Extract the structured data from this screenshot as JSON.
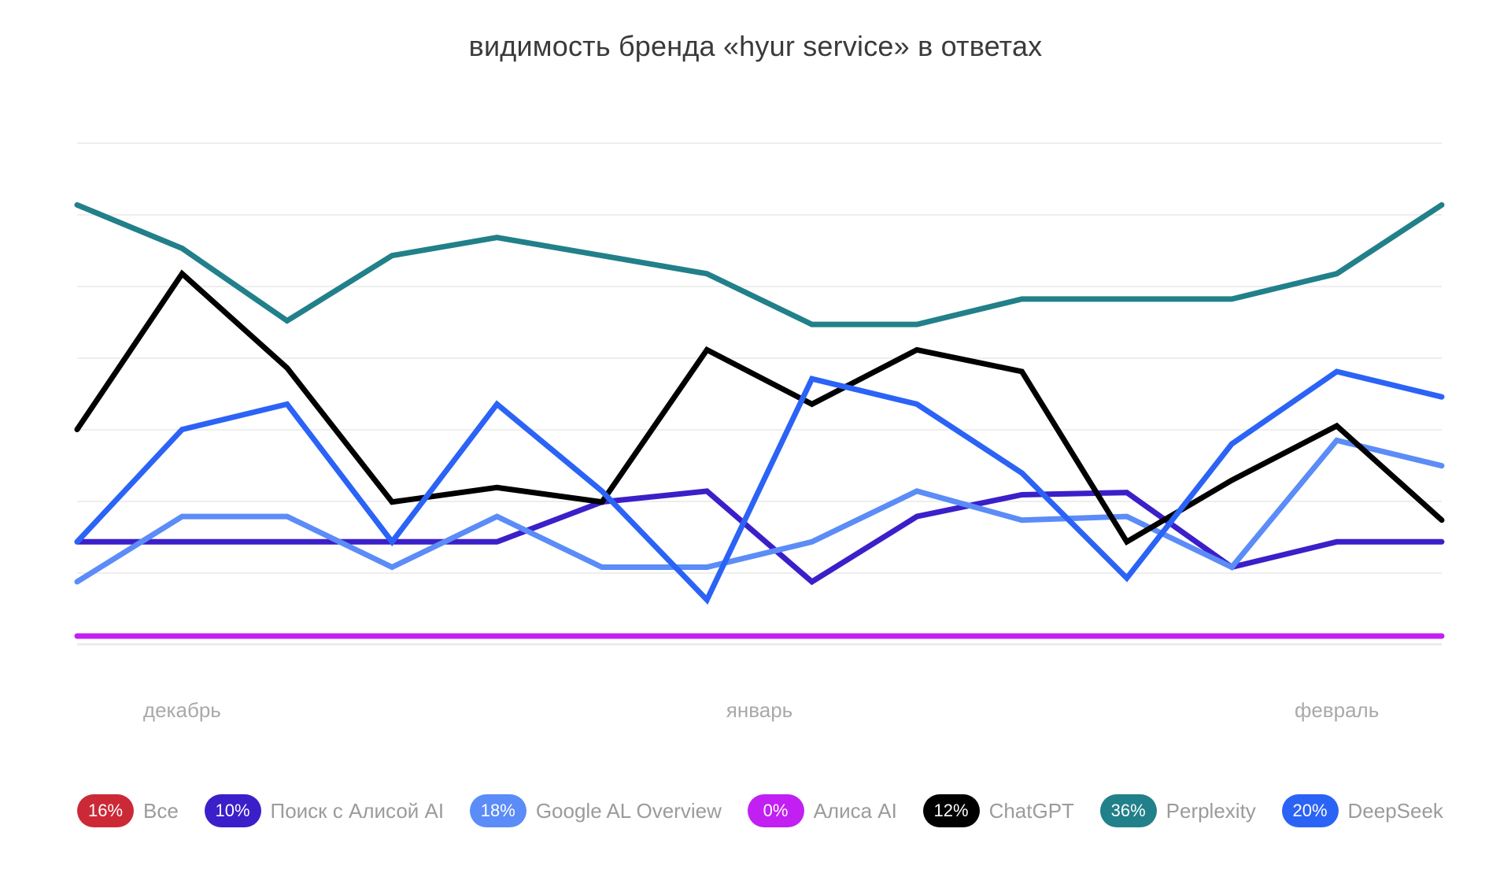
{
  "chart_data": {
    "type": "line",
    "title": "видимость бренда «hyur service» в ответах",
    "xlabel": "",
    "ylabel": "",
    "x_tick_labels": [
      {
        "label": "декабрь",
        "index": 1
      },
      {
        "label": "январь",
        "index": 6.5
      },
      {
        "label": "февраль",
        "index": 12
      }
    ],
    "point_count": 14,
    "ylim": [
      0,
      60
    ],
    "grid": true,
    "legend_position": "bottom",
    "series": [
      {
        "name": "Все",
        "badge": "16%",
        "color": "#cc2936",
        "values": []
      },
      {
        "name": "Поиск с Алисой AI",
        "badge": "10%",
        "color": "#3b1fc9",
        "values": [
          13,
          13,
          13,
          13,
          13,
          18.5,
          20,
          7.5,
          16.5,
          19.5,
          19.8,
          9.5,
          13,
          13
        ]
      },
      {
        "name": "Google AL Overview",
        "badge": "18%",
        "color": "#5b8cf7",
        "values": [
          7.5,
          16.5,
          16.5,
          9.5,
          16.5,
          9.5,
          9.5,
          13,
          20,
          16,
          16.5,
          9.5,
          27,
          23.5
        ]
      },
      {
        "name": "Алиса AI",
        "badge": "0%",
        "color": "#c21ff2",
        "values": [
          0,
          0,
          0,
          0,
          0,
          0,
          0,
          0,
          0,
          0,
          0,
          0,
          0,
          0
        ]
      },
      {
        "name": "ChatGPT",
        "badge": "12%",
        "color": "#000000",
        "values": [
          28.5,
          50,
          37,
          18.5,
          20.5,
          18.5,
          39.5,
          32,
          39.5,
          36.5,
          13,
          21.5,
          29,
          16
        ]
      },
      {
        "name": "Perplexity",
        "badge": "36%",
        "color": "#21808a",
        "values": [
          59.5,
          53.5,
          43.5,
          52.5,
          55,
          52.5,
          50,
          43,
          43,
          46.5,
          46.5,
          46.5,
          50,
          59.5
        ]
      },
      {
        "name": "DeepSeek",
        "badge": "20%",
        "color": "#2b63f6",
        "values": [
          13,
          28.5,
          32,
          13,
          32,
          20,
          5,
          35.5,
          32,
          22.5,
          8,
          26.5,
          36.5,
          33
        ]
      }
    ]
  }
}
